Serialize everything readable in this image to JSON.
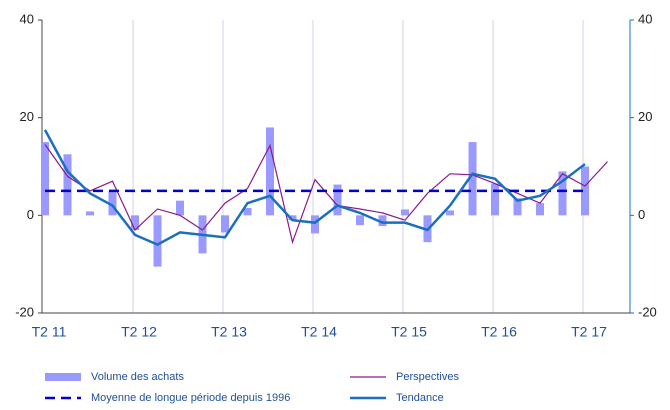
{
  "chart_data": {
    "type": "bar-line",
    "categories": [
      "T2 11",
      null,
      null,
      null,
      "T2 12",
      null,
      null,
      null,
      "T2 13",
      null,
      null,
      null,
      "T2 14",
      null,
      null,
      null,
      "T2 15",
      null,
      null,
      null,
      "T2 16",
      null,
      null,
      null,
      "T2 17",
      null
    ],
    "series": [
      {
        "name": "Volume des achats",
        "kind": "bar",
        "color": "#9999ff",
        "values": [
          15,
          12.5,
          0.8,
          5,
          -3,
          -10.5,
          3,
          -7.8,
          -3.5,
          1.5,
          18,
          -1,
          -3.7,
          6.3,
          -2,
          -2.2,
          1.2,
          -5.5,
          1,
          15,
          6.5,
          3.5,
          2.5,
          9,
          10,
          null
        ]
      },
      {
        "name": "Perspectives",
        "kind": "line",
        "color": "#8b1a8b",
        "values": [
          14.5,
          8,
          5,
          7,
          -3,
          1.3,
          0,
          -3,
          2.5,
          5.5,
          14.3,
          -5.5,
          7.3,
          2,
          1.3,
          0.5,
          -1,
          4.5,
          8.5,
          8.3,
          6.5,
          4.5,
          2.5,
          8.5,
          6,
          11
        ]
      },
      {
        "name": "Moyenne de longue période depuis 1996",
        "kind": "dashed",
        "color": "#0000cc",
        "values": [
          5,
          5,
          5,
          5,
          5,
          5,
          5,
          5,
          5,
          5,
          5,
          5,
          5,
          5,
          5,
          5,
          5,
          5,
          5,
          5,
          5,
          5,
          5,
          5,
          5,
          null
        ]
      },
      {
        "name": "Tendance",
        "kind": "thick",
        "color": "#1a6fc0",
        "values": [
          17.5,
          9,
          4.5,
          2,
          -4,
          -6,
          -3.5,
          -4,
          -4.5,
          2.5,
          4,
          -1,
          -1.5,
          2,
          0.5,
          -1.5,
          -1.5,
          -3,
          2,
          8.5,
          7.5,
          3,
          4,
          7,
          10.5,
          null
        ]
      }
    ],
    "ylim": [
      -20,
      40
    ],
    "yticks": [
      -20,
      0,
      20,
      40
    ],
    "y2lim": [
      -20,
      40
    ],
    "y2ticks": [
      -20,
      0,
      20,
      40
    ],
    "grid": true
  }
}
